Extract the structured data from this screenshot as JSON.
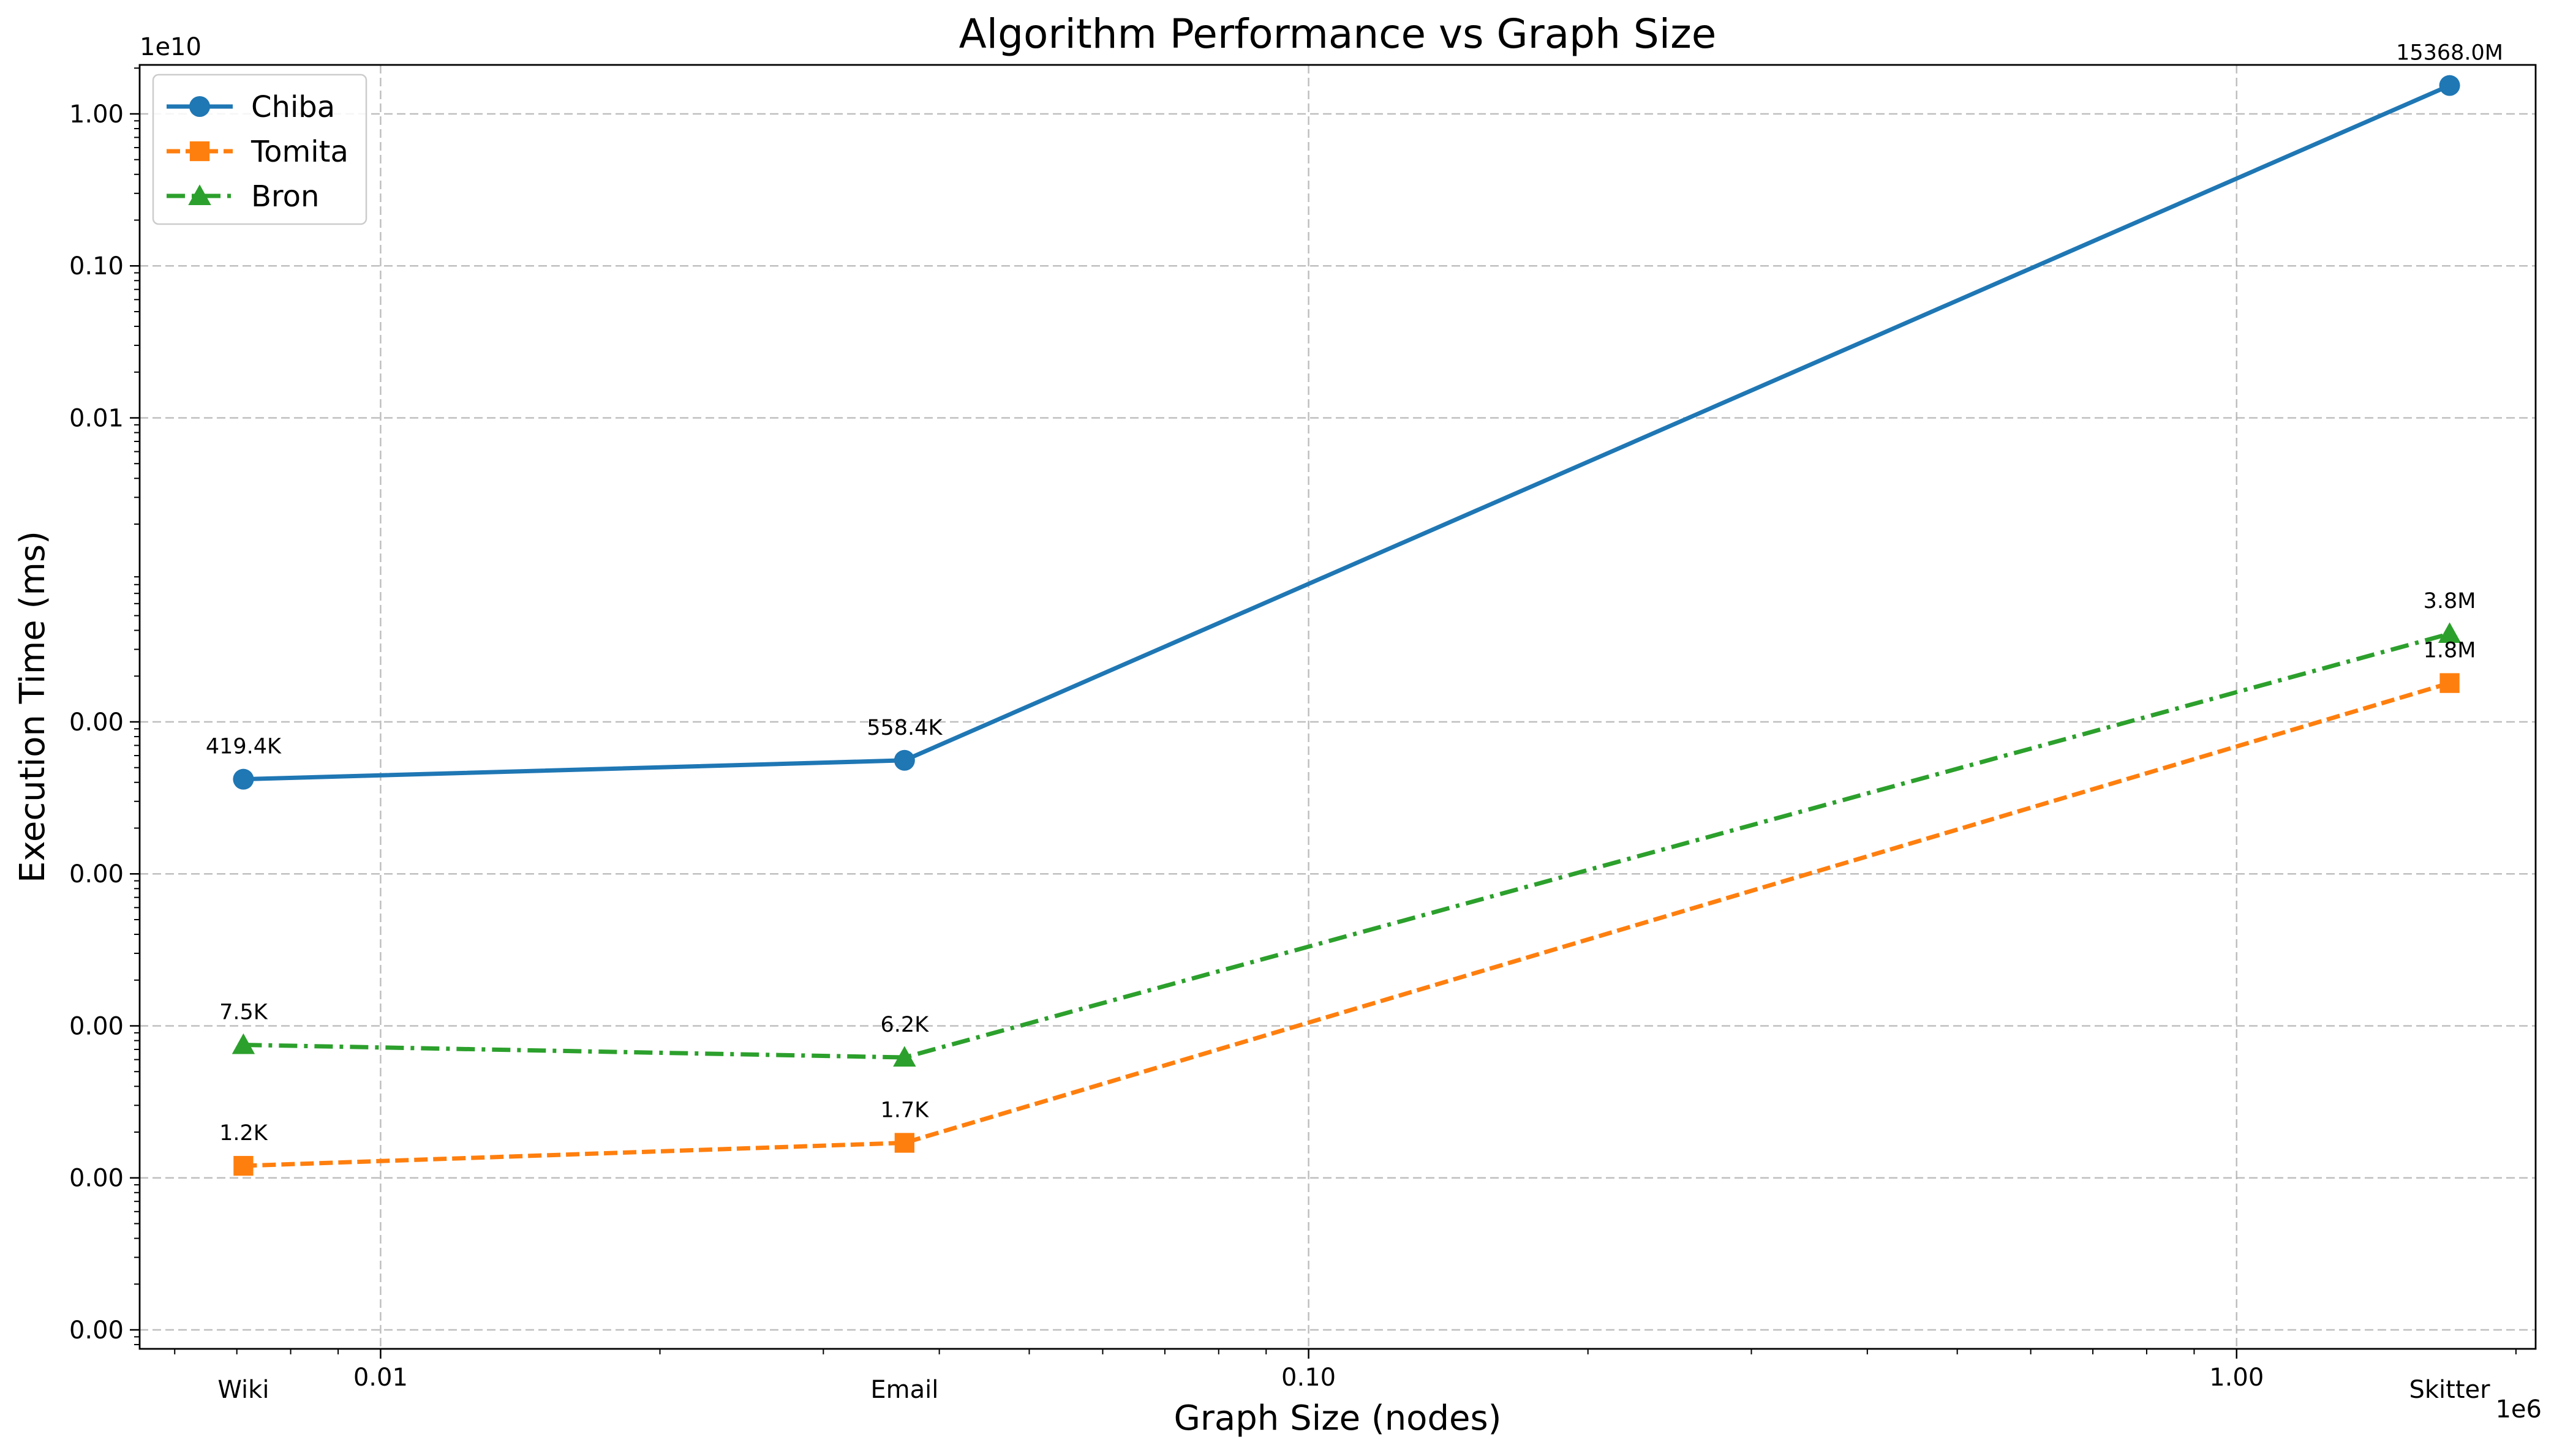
{
  "chart_data": {
    "type": "line",
    "title": "Algorithm Performance vs Graph Size",
    "xlabel": "Graph Size (nodes)",
    "ylabel": "Execution Time (ms)",
    "x_scale": "log",
    "y_scale": "log",
    "x_offset_text": "1e6",
    "y_offset_text": "1e10",
    "x_tick_labels": [
      "0.01",
      "0.10",
      "1.00"
    ],
    "x_tick_values": [
      10000,
      100000,
      1000000
    ],
    "y_tick_labels": [
      "0.00",
      "0.00",
      "0.00",
      "0.00",
      "0.00",
      "0.01",
      "0.10",
      "1.00"
    ],
    "y_tick_values": [
      100,
      1000,
      10000,
      100000,
      1000000,
      100000000,
      1000000000,
      10000000000
    ],
    "categories": [
      "Wiki",
      "Email",
      "Skitter"
    ],
    "x": [
      7115,
      36692,
      1696415
    ],
    "xlim": [
      5500,
      2100000
    ],
    "ylim": [
      75,
      21000000000
    ],
    "grid": true,
    "legend_position": "top-left",
    "series": [
      {
        "name": "Chiba",
        "color": "#1f77b4",
        "marker": "circle",
        "line_style": "solid",
        "values": [
          419400,
          558400,
          15368000000
        ],
        "labels": [
          "419.4K",
          "558.4K",
          "15368.0M"
        ]
      },
      {
        "name": "Tomita",
        "color": "#ff7f0e",
        "marker": "square",
        "line_style": "dashed",
        "values": [
          1200,
          1700,
          1800000
        ],
        "labels": [
          "1.2K",
          "1.7K",
          "1.8M"
        ]
      },
      {
        "name": "Bron",
        "color": "#2ca02c",
        "marker": "triangle",
        "line_style": "dashdot",
        "values": [
          7500,
          6200,
          3800000
        ],
        "labels": [
          "7.5K",
          "6.2K",
          "3.8M"
        ]
      }
    ]
  }
}
